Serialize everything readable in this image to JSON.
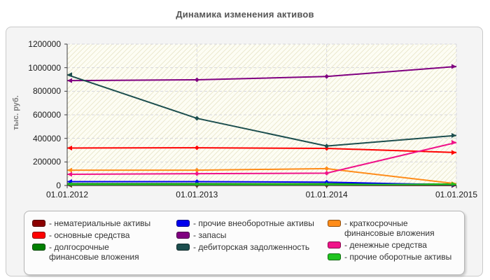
{
  "title": "Динамика изменения активов",
  "legend": {
    "prefix": "- "
  },
  "chart_data": {
    "type": "line",
    "title": "Динамика изменения активов",
    "xlabel": "",
    "ylabel": "тыс. руб.",
    "ylim": [
      0,
      1200000
    ],
    "yticks": [
      0,
      200000,
      400000,
      600000,
      800000,
      1000000,
      1200000
    ],
    "grid": true,
    "legend_position": "bottom",
    "categories": [
      "01.01.2012",
      "01.01.2013",
      "01.01.2014",
      "01.01.2015"
    ],
    "series": [
      {
        "name": "нематериальные активы",
        "color": "#8B0000",
        "values": [
          2000,
          2000,
          2000,
          1000
        ]
      },
      {
        "name": "основные средства",
        "color": "#FF0000",
        "values": [
          318000,
          320000,
          315000,
          280000
        ]
      },
      {
        "name": "долгосрочные финансовые вложения",
        "color": "#008000",
        "values": [
          15000,
          15000,
          14000,
          12000
        ]
      },
      {
        "name": "прочие внеоборотные активы",
        "color": "#0000EE",
        "values": [
          33000,
          33000,
          28000,
          5000
        ]
      },
      {
        "name": "запасы",
        "color": "#800080",
        "values": [
          890000,
          897000,
          925000,
          1010000
        ]
      },
      {
        "name": "дебиторская задолженность",
        "color": "#1C4E4E",
        "values": [
          940000,
          570000,
          335000,
          425000
        ]
      },
      {
        "name": "краткосрочные финансовые вложения",
        "color": "#FF8C19",
        "values": [
          130000,
          130000,
          143000,
          15000
        ]
      },
      {
        "name": "денежные средства",
        "color": "#F01389",
        "values": [
          95000,
          100000,
          105000,
          365000
        ]
      },
      {
        "name": "прочие оборотные активы",
        "color": "#1FC41F",
        "values": [
          8000,
          8000,
          8000,
          10000
        ]
      }
    ]
  }
}
